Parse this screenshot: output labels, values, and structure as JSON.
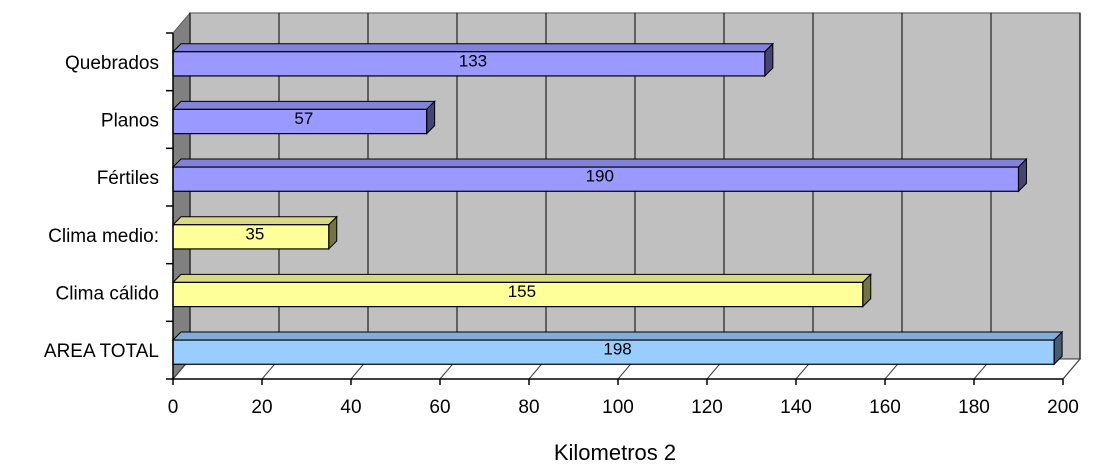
{
  "chart_data": {
    "type": "bar",
    "orientation": "horizontal",
    "categories": [
      "Quebrados",
      "Planos",
      "Fértiles",
      "Clima medio:",
      "Clima cálido",
      "AREA TOTAL"
    ],
    "values": [
      133,
      57,
      190,
      35,
      155,
      198
    ],
    "bar_colors": [
      "#9999ff",
      "#9999ff",
      "#9999ff",
      "#ffff99",
      "#ffff99",
      "#99ccff"
    ],
    "xlabel": "Kilometros 2",
    "ylabel": "",
    "title": "",
    "xlim": [
      0,
      200
    ],
    "xticks": [
      "0",
      "20",
      "40",
      "60",
      "80",
      "100",
      "120",
      "140",
      "160",
      "180",
      "200"
    ],
    "grid": true,
    "plot_background": "#c0c0c0",
    "legend": "none"
  }
}
